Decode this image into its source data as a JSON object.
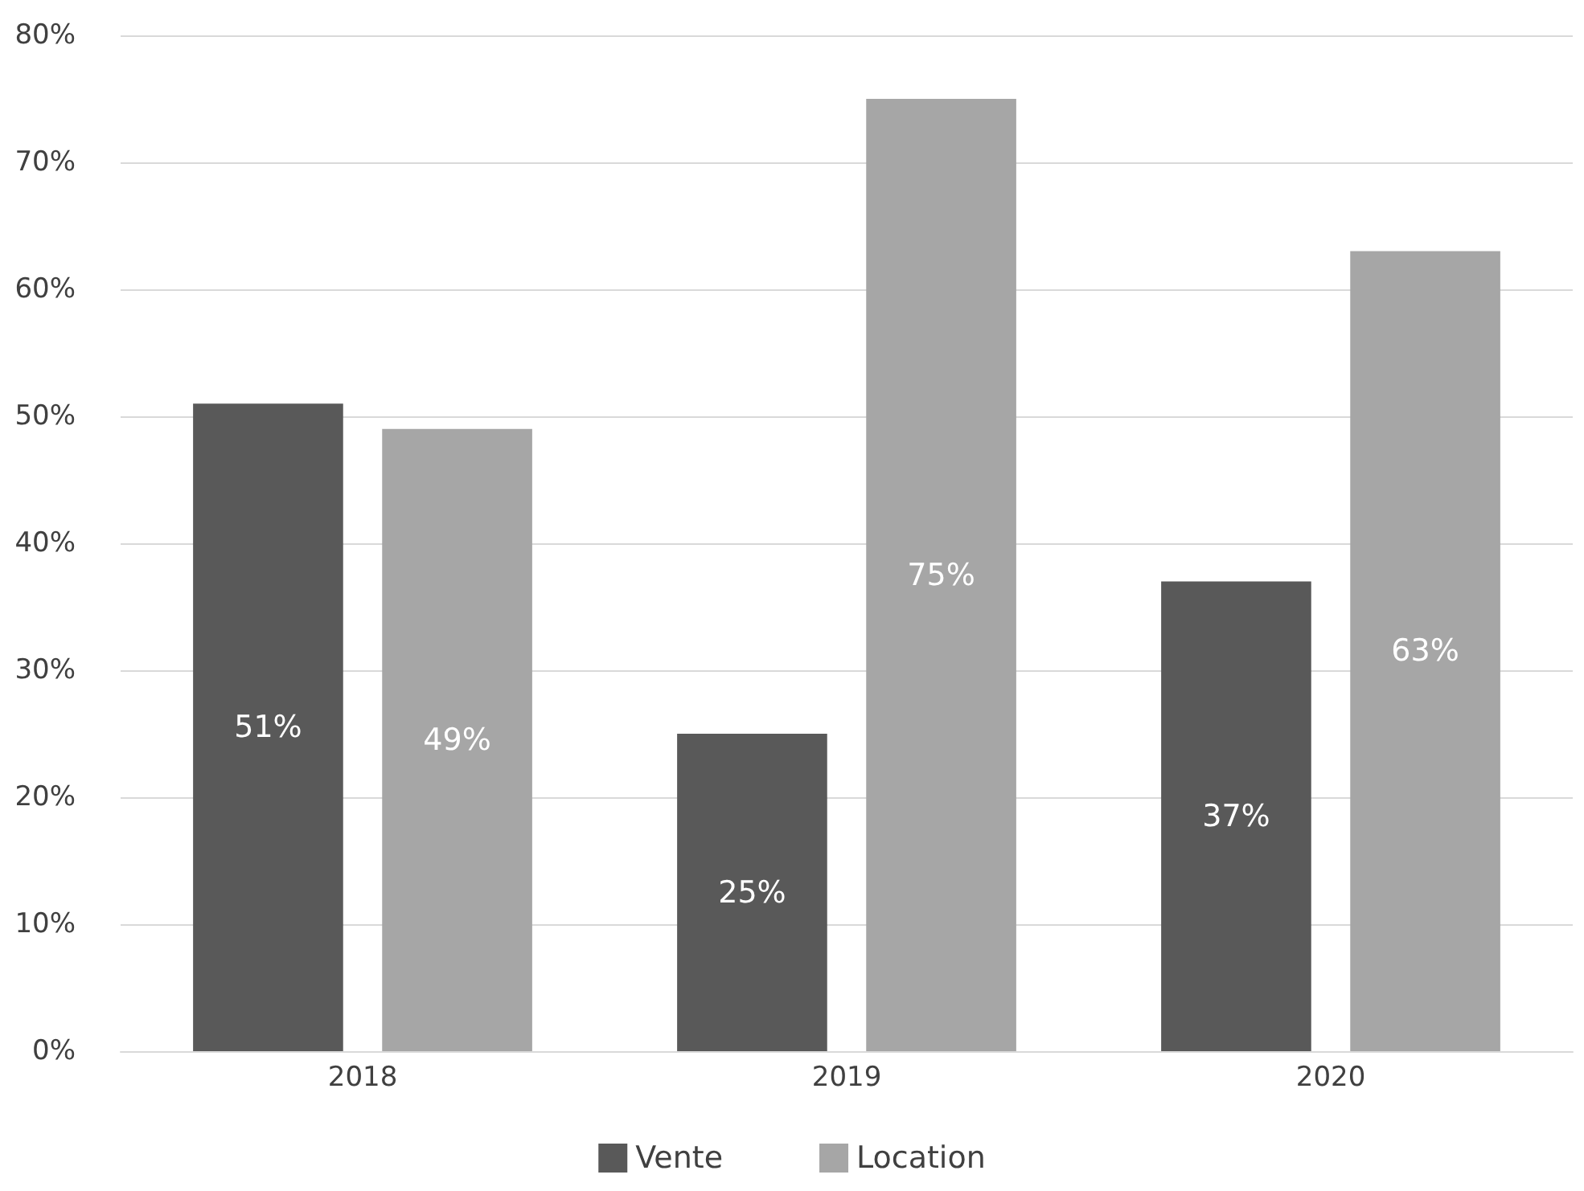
{
  "chart_data": {
    "type": "bar",
    "categories": [
      "2018",
      "2019",
      "2020"
    ],
    "series": [
      {
        "name": "Vente",
        "color": "#595959",
        "values": [
          51,
          25,
          37
        ],
        "value_labels": [
          "51%",
          "25%",
          "37%"
        ]
      },
      {
        "name": "Location",
        "color": "#a6a6a6",
        "values": [
          49,
          75,
          63
        ],
        "value_labels": [
          "49%",
          "75%",
          "63%"
        ]
      }
    ],
    "ylim": [
      0,
      80
    ],
    "yticks": [
      {
        "value": 0,
        "label": "0%"
      },
      {
        "value": 10,
        "label": "10%"
      },
      {
        "value": 20,
        "label": "20%"
      },
      {
        "value": 30,
        "label": "30%"
      },
      {
        "value": 40,
        "label": "40%"
      },
      {
        "value": 50,
        "label": "50%"
      },
      {
        "value": 60,
        "label": "60%"
      },
      {
        "value": 70,
        "label": "70%"
      },
      {
        "value": 80,
        "label": "80%"
      }
    ],
    "grid": "y",
    "legend": "bottom"
  }
}
